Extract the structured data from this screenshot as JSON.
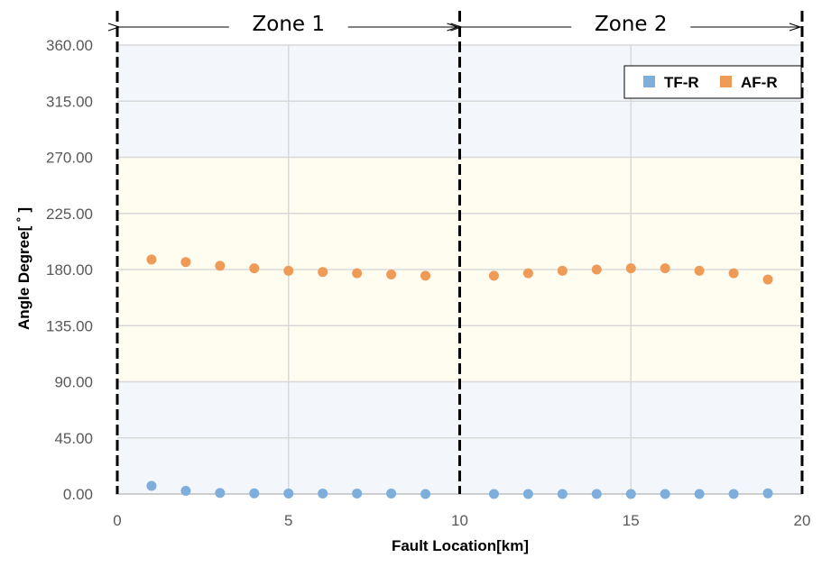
{
  "chart_data": {
    "type": "scatter",
    "xlabel": "Fault Location[km]",
    "ylabel": "Angle Degree[ ˚ ]",
    "xlim": [
      0,
      20
    ],
    "ylim": [
      0,
      360
    ],
    "x_ticks": [
      "0",
      "5",
      "10",
      "15",
      "20"
    ],
    "y_ticks": [
      "0.00",
      "45.00",
      "90.00",
      "135.00",
      "180.00",
      "225.00",
      "270.00",
      "315.00",
      "360.00"
    ],
    "grid": true,
    "legend_position": "top-right",
    "bands": [
      {
        "y_from": 0,
        "y_to": 90,
        "color": "#f3f6fb"
      },
      {
        "y_from": 90,
        "y_to": 270,
        "color": "#fffcf0"
      },
      {
        "y_from": 270,
        "y_to": 360,
        "color": "#f3f6fb"
      }
    ],
    "zone_boundaries": [
      0,
      10,
      20
    ],
    "zones": [
      {
        "label": "Zone 1",
        "x_from": 0,
        "x_to": 10
      },
      {
        "label": "Zone 2",
        "x_from": 10,
        "x_to": 20
      }
    ],
    "series": [
      {
        "name": "TF-R",
        "color": "#7eaedc",
        "points": [
          [
            1,
            6.5
          ],
          [
            2,
            2.5
          ],
          [
            3,
            0.8
          ],
          [
            4,
            0.5
          ],
          [
            5,
            0.4
          ],
          [
            6,
            0.4
          ],
          [
            7,
            0.4
          ],
          [
            8,
            0.4
          ],
          [
            9,
            0
          ],
          [
            11,
            0
          ],
          [
            12,
            0
          ],
          [
            13,
            0
          ],
          [
            14,
            0
          ],
          [
            15,
            0
          ],
          [
            16,
            0
          ],
          [
            17,
            0
          ],
          [
            18,
            0
          ],
          [
            19,
            0.5
          ]
        ]
      },
      {
        "name": "AF-R",
        "color": "#ef9b58",
        "points": [
          [
            1,
            188
          ],
          [
            2,
            186
          ],
          [
            3,
            183
          ],
          [
            4,
            181
          ],
          [
            5,
            179
          ],
          [
            6,
            178
          ],
          [
            7,
            177
          ],
          [
            8,
            176
          ],
          [
            9,
            175
          ],
          [
            11,
            175
          ],
          [
            12,
            177
          ],
          [
            13,
            179
          ],
          [
            14,
            180
          ],
          [
            15,
            181
          ],
          [
            16,
            181
          ],
          [
            17,
            179
          ],
          [
            18,
            177
          ],
          [
            19,
            172
          ]
        ]
      }
    ]
  }
}
